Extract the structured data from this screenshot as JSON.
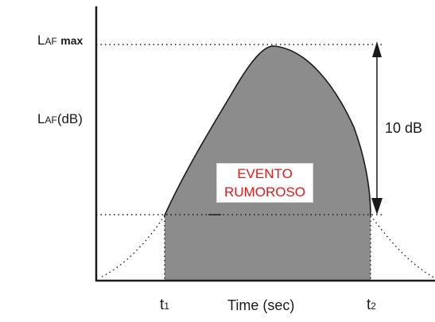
{
  "diagram": {
    "y_label_max": {
      "main": "L",
      "sub": "AF",
      "suffix": "max"
    },
    "y_label_axis": {
      "main": "L",
      "sub": "AF",
      "suffix": "(dB)"
    },
    "delta_label": "10 dB",
    "event_label_line1": "EVENTO",
    "event_label_line2": "RUMOROSO",
    "x_label": "Time (sec)",
    "t1": {
      "main": "t",
      "sub": "1"
    },
    "t2": {
      "main": "t",
      "sub": "2"
    },
    "colors": {
      "fill": "#8c8c8c",
      "line": "#1a1a1a",
      "event_text": "#e41a1a"
    }
  }
}
